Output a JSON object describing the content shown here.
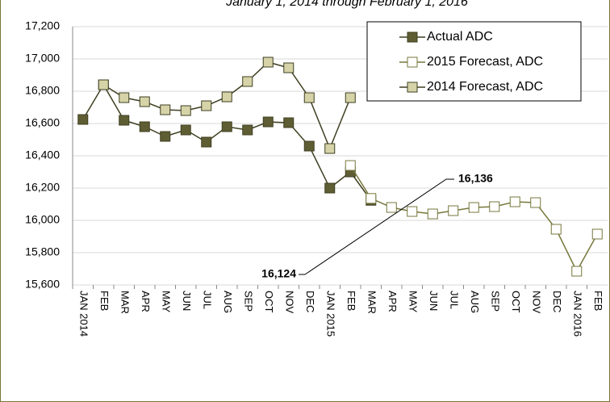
{
  "chart_data": {
    "type": "line",
    "title": "January 1, 2014 through February 1, 2016",
    "categories": [
      "JAN  2014",
      "FEB",
      "MAR",
      "APR",
      "MAY",
      "JUN",
      "JUL",
      "AUG",
      "SEP",
      "OCT",
      "NOV",
      "DEC",
      "JAN 2015",
      "FEB",
      "MAR",
      "APR",
      "MAY",
      "JUN",
      "JUL",
      "AUG",
      "SEP",
      "OCT",
      "NOV",
      "DEC",
      "JAN 2016",
      "FEB"
    ],
    "series": [
      {
        "name": "Actual ADC",
        "color": "#5e5d33",
        "line_color": "#3f3f22",
        "values": [
          16625,
          16840,
          16620,
          16580,
          16520,
          16560,
          16485,
          16580,
          16560,
          16610,
          16605,
          16460,
          16200,
          16300,
          16124,
          null,
          null,
          null,
          null,
          null,
          null,
          null,
          null,
          null,
          null,
          null
        ]
      },
      {
        "name": "2015 Forecast, ADC",
        "color": "#ffffff",
        "line_color": "#77773c",
        "values": [
          null,
          null,
          null,
          null,
          null,
          null,
          null,
          null,
          null,
          null,
          null,
          null,
          null,
          16340,
          16136,
          16080,
          16055,
          16040,
          16060,
          16080,
          16085,
          16115,
          16110,
          15945,
          15685,
          15915
        ]
      },
      {
        "name": "2014 Forecast, ADC",
        "color": "#d6d3a8",
        "line_color": "#3f3f22",
        "values": [
          null,
          16840,
          16760,
          16735,
          16685,
          16680,
          16710,
          16765,
          16860,
          16980,
          16945,
          16760,
          16445,
          16760,
          null,
          null,
          null,
          null,
          null,
          null,
          null,
          null,
          null,
          null,
          null,
          null
        ]
      }
    ],
    "annotations": [
      {
        "text": "16,124",
        "color": "#000000"
      },
      {
        "text": "16,136",
        "color": "#77773c"
      }
    ],
    "ylim": [
      15600,
      17200
    ],
    "yticks": [
      {
        "value": 15600,
        "label": "15,600"
      },
      {
        "value": 15800,
        "label": "15,800"
      },
      {
        "value": 16000,
        "label": "16,000"
      },
      {
        "value": 16200,
        "label": "16,200"
      },
      {
        "value": 16400,
        "label": "16,400"
      },
      {
        "value": 16600,
        "label": "16,600"
      },
      {
        "value": 16800,
        "label": "16,800"
      },
      {
        "value": 17000,
        "label": "17,000"
      },
      {
        "value": 17200,
        "label": "17,200"
      }
    ],
    "grid": true,
    "legend": "upper right"
  }
}
